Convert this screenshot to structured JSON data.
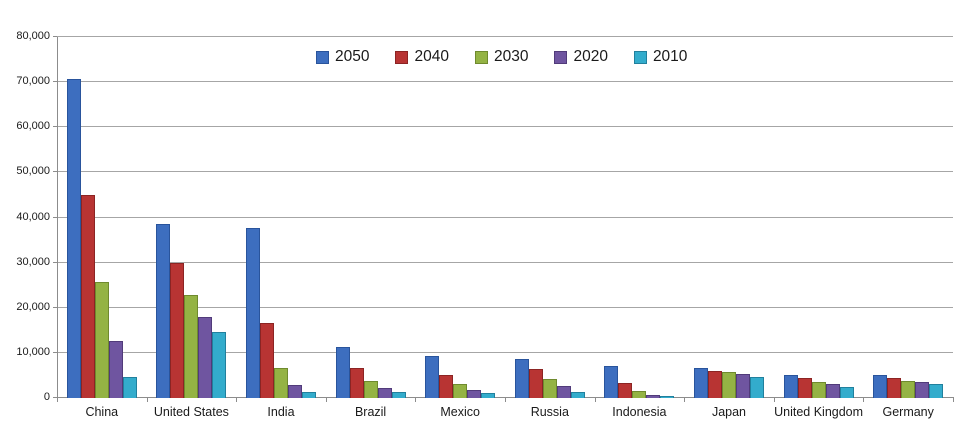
{
  "chart_data": {
    "type": "bar",
    "title": "",
    "xlabel": "",
    "ylabel": "",
    "categories": [
      "China",
      "United States",
      "India",
      "Brazil",
      "Mexico",
      "Russia",
      "Indonesia",
      "Japan",
      "United Kingdom",
      "Germany"
    ],
    "series": [
      {
        "name": "2050",
        "color": "#3d6ebf",
        "border_color": "#29549c",
        "values": [
          70710,
          38514,
          37668,
          11366,
          9340,
          8580,
          7010,
          6677,
          5133,
          5024
        ]
      },
      {
        "name": "2040",
        "color": "#b83433",
        "border_color": "#8c2423",
        "values": [
          45022,
          29823,
          16510,
          6631,
          5165,
          6320,
          3286,
          6042,
          4344,
          4388
        ]
      },
      {
        "name": "2030",
        "color": "#94b344",
        "border_color": "#6f8a2e",
        "values": [
          25610,
          22817,
          6683,
          3720,
          3068,
          4265,
          1479,
          5814,
          3595,
          3761
        ]
      },
      {
        "name": "2020",
        "color": "#6f55a0",
        "border_color": "#513b7a",
        "values": [
          12630,
          17978,
          2848,
          2194,
          1742,
          2554,
          752,
          5224,
          3101,
          3519
        ]
      },
      {
        "name": "2010",
        "color": "#33accc",
        "border_color": "#21809d",
        "values": [
          4667,
          14535,
          1256,
          1346,
          1009,
          1371,
          419,
          4604,
          2546,
          3083
        ]
      }
    ],
    "ylim": [
      0,
      80000
    ],
    "ytick_step": 10000,
    "ytick_labels": [
      "0",
      "10,000",
      "20,000",
      "30,000",
      "40,000",
      "50,000",
      "60,000",
      "70,000",
      "80,000"
    ],
    "grid": true,
    "legend_position": "top-center",
    "legend_labels": [
      "2050",
      "2040",
      "2030",
      "2020",
      "2010"
    ]
  },
  "colors": {
    "background": "#ffffff",
    "gridline": "#a6a6a6",
    "axis": "#8c8c8c",
    "text": "#1a1a1a"
  }
}
